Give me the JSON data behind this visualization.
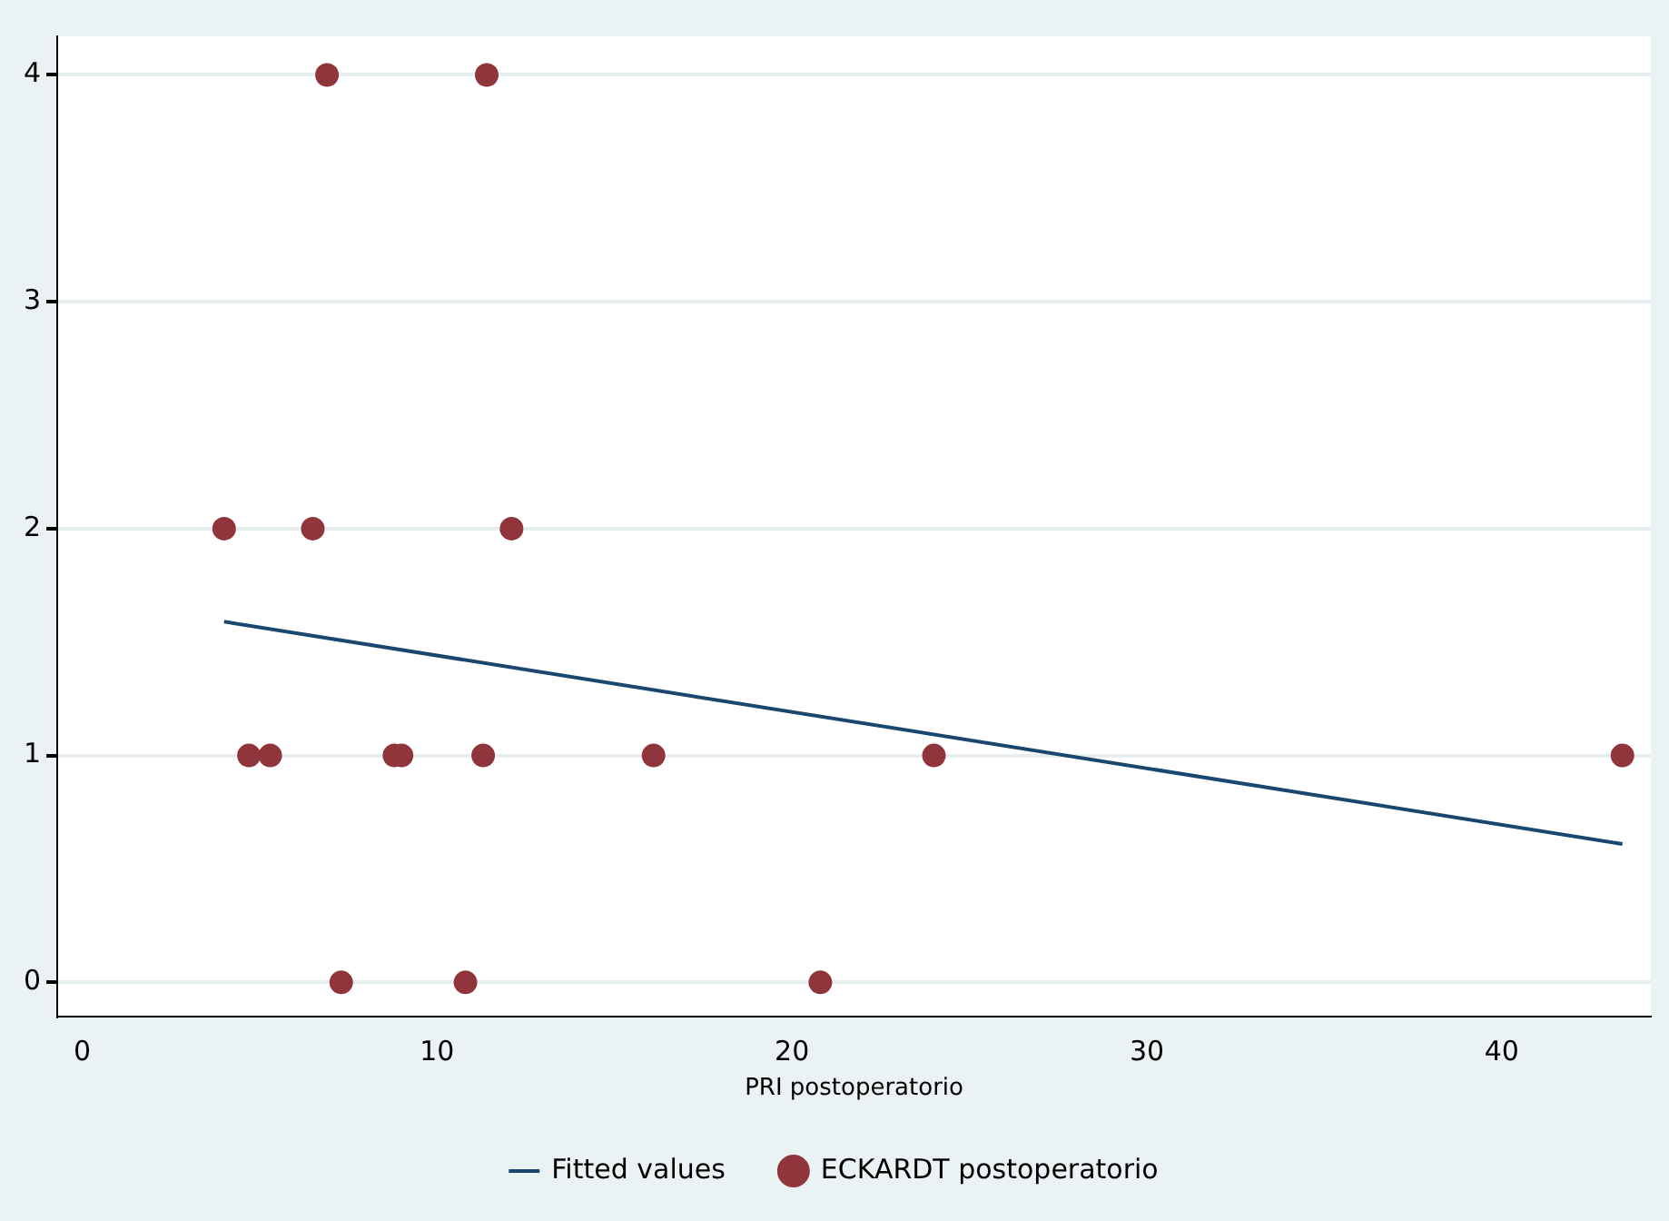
{
  "chart_data": {
    "type": "scatter",
    "xlabel": "PRI postoperatorio",
    "xlim": [
      -0.7,
      44.2
    ],
    "xticks": [
      0,
      10,
      20,
      30,
      40
    ],
    "ylim": [
      -0.15,
      4.17
    ],
    "yticks": [
      0,
      1,
      2,
      3,
      4
    ],
    "grid": "y",
    "legend": "bottom",
    "series": [
      {
        "name": "Fitted values",
        "type": "line",
        "color": "#1a476f",
        "marker": "none",
        "x": [
          4.0,
          43.4
        ],
        "values": [
          1.59,
          0.61
        ]
      },
      {
        "name": "ECKARDT postoperatorio",
        "type": "scatter",
        "marker": "circle",
        "color": "#90353b",
        "x": [
          4.0,
          6.9,
          11.4,
          6.5,
          12.1,
          4.7,
          5.3,
          8.8,
          9.0,
          11.3,
          16.1,
          24.0,
          43.4,
          7.3,
          10.8,
          20.8
        ],
        "values": [
          2,
          4,
          4,
          2,
          2,
          1,
          1,
          1,
          1,
          1,
          1,
          1,
          1,
          0,
          0,
          0
        ]
      }
    ]
  }
}
